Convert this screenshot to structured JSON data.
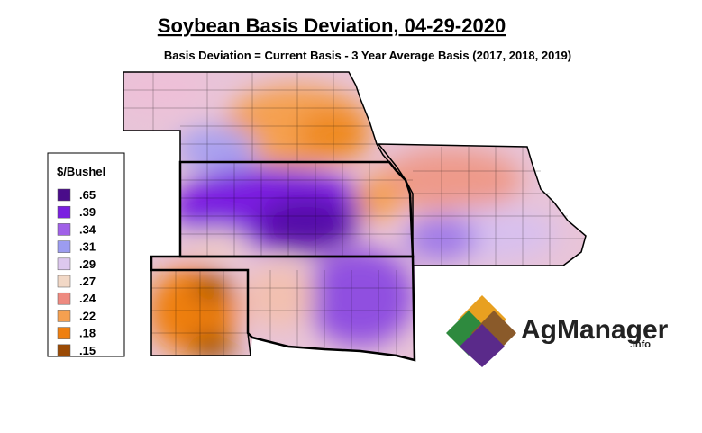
{
  "title": "Soybean Basis Deviation, 04-29-2020",
  "subtitle": "Basis Deviation = Current Basis - 3 Year Average Basis (2017, 2018, 2019)",
  "legend": {
    "title": "$/Bushel",
    "items": [
      {
        "label": ".65",
        "color": "#4a0c8a"
      },
      {
        "label": ".39",
        "color": "#7a1fe0"
      },
      {
        "label": ".34",
        "color": "#a060e8"
      },
      {
        "label": ".31",
        "color": "#9c9cf0"
      },
      {
        "label": ".29",
        "color": "#ddc8ee"
      },
      {
        "label": ".27",
        "color": "#f2d8c6"
      },
      {
        "label": ".24",
        "color": "#ee8a80"
      },
      {
        "label": ".22",
        "color": "#f5a050"
      },
      {
        "label": ".18",
        "color": "#ef7f10"
      },
      {
        "label": ".15",
        "color": "#9a4a05"
      }
    ]
  },
  "logo": {
    "name": "AgManager",
    "suffix": ".info"
  }
}
